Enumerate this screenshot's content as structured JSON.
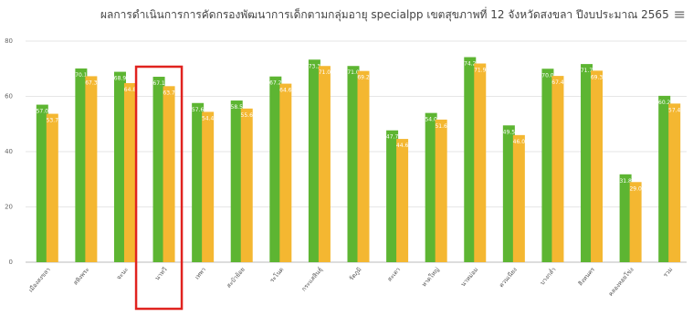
{
  "chart_data": {
    "type": "bar",
    "title": "ผลการดำเนินการการคัดกรองพัฒนาการเด็กตามกลุ่มอายุ specialpp เขตสุขภาพที่ 12 จังหวัดสงขลา ปีงบประมาณ 2565",
    "categories": [
      "เมืองสงขลา",
      "สทิงพระ",
      "จะนะ",
      "นาทวี",
      "เทพา",
      "สะบ้าย้อย",
      "ระโนด",
      "กระแสสินธุ์",
      "รัตภูมิ",
      "สะเดา",
      "หาดใหญ่",
      "นาหม่อม",
      "ควนเนียง",
      "บางกล่ำ",
      "สิงหนคร",
      "คลองหอยโข่ง",
      "รวม"
    ],
    "series": [
      {
        "color": "#5db532",
        "values": [
          57.0,
          70.1,
          68.9,
          67.1,
          57.6,
          58.5,
          67.2,
          73.3,
          71.0,
          47.7,
          54.0,
          74.2,
          49.5,
          70.0,
          71.7,
          31.8,
          60.2
        ]
      },
      {
        "color": "#f4b731",
        "values": [
          53.7,
          67.3,
          64.8,
          63.7,
          54.4,
          55.6,
          64.6,
          71.0,
          69.2,
          44.6,
          51.6,
          71.9,
          46.0,
          67.4,
          69.3,
          29.0,
          57.4
        ]
      }
    ],
    "ylim": [
      0,
      80
    ],
    "yticks": [
      0,
      20,
      40,
      60,
      80
    ],
    "grid": true,
    "highlighted_category": "นาทวี"
  },
  "menu_icon": "hamburger-menu-icon"
}
